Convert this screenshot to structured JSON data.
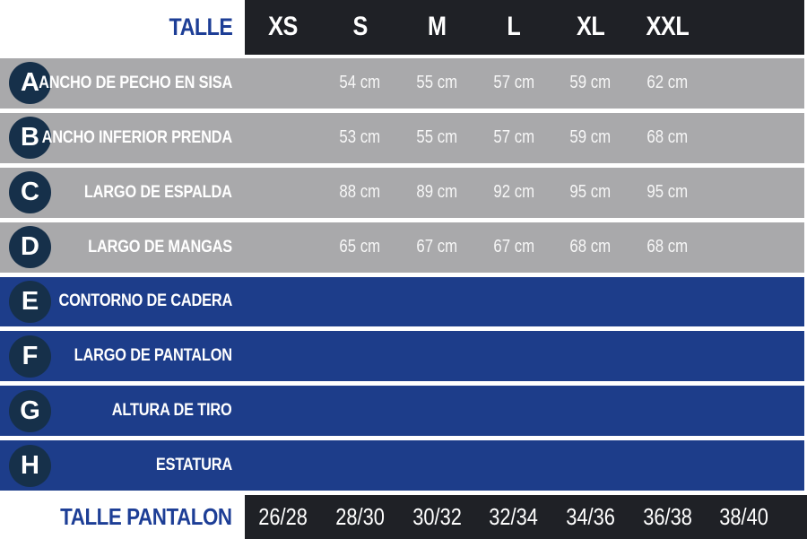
{
  "header": {
    "label": "TALLE",
    "sizes": [
      "XS",
      "S",
      "M",
      "L",
      "XL",
      "XXL"
    ]
  },
  "rows": [
    {
      "letter": "A",
      "label": "ANCHO DE PECHO EN SISA",
      "values": [
        "",
        "54 cm",
        "55 cm",
        "57 cm",
        "59 cm",
        "62 cm",
        ""
      ]
    },
    {
      "letter": "B",
      "label": "ANCHO INFERIOR PRENDA",
      "values": [
        "",
        "53 cm",
        "55 cm",
        "57 cm",
        "59 cm",
        "68 cm",
        ""
      ]
    },
    {
      "letter": "C",
      "label": "LARGO DE ESPALDA",
      "values": [
        "",
        "88 cm",
        "89 cm",
        "92 cm",
        "95 cm",
        "95 cm",
        ""
      ]
    },
    {
      "letter": "D",
      "label": "LARGO DE MANGAS",
      "values": [
        "",
        "65 cm",
        "67 cm",
        "67 cm",
        "68 cm",
        "68 cm",
        ""
      ]
    },
    {
      "letter": "E",
      "label": "CONTORNO DE CADERA",
      "values": [
        "",
        "",
        "",
        "",
        "",
        "",
        ""
      ]
    },
    {
      "letter": "F",
      "label": "LARGO DE PANTALON",
      "values": [
        "",
        "",
        "",
        "",
        "",
        "",
        ""
      ]
    },
    {
      "letter": "G",
      "label": "ALTURA DE TIRO",
      "values": [
        "",
        "",
        "",
        "",
        "",
        "",
        ""
      ]
    },
    {
      "letter": "H",
      "label": "ESTATURA",
      "values": [
        "",
        "",
        "",
        "",
        "",
        "",
        ""
      ]
    }
  ],
  "footer": {
    "label": "TALLE PANTALON",
    "values": [
      "26/28",
      "28/30",
      "30/32",
      "32/34",
      "34/36",
      "36/38",
      "38/40"
    ]
  },
  "colors": {
    "black": "#1f2126",
    "gray-row": "#a9a9ab",
    "blue-row": "#1d3d8a",
    "circle-navy": "#16304a",
    "blue-text": "#1d3e96"
  },
  "chart_data": {
    "type": "table",
    "title": "TALLE",
    "columns": [
      "TALLE",
      "XS",
      "S",
      "M",
      "L",
      "XL",
      "XXL"
    ],
    "rows": [
      {
        "id": "A",
        "measure": "ANCHO DE PECHO EN SISA",
        "values": {
          "XS": null,
          "S": "54 cm",
          "M": "55 cm",
          "L": "57 cm",
          "XL": "59 cm",
          "XXL": "62 cm"
        }
      },
      {
        "id": "B",
        "measure": "ANCHO INFERIOR PRENDA",
        "values": {
          "XS": null,
          "S": "53 cm",
          "M": "55 cm",
          "L": "57 cm",
          "XL": "59 cm",
          "XXL": "68 cm"
        }
      },
      {
        "id": "C",
        "measure": "LARGO DE ESPALDA",
        "values": {
          "XS": null,
          "S": "88 cm",
          "M": "89 cm",
          "L": "92 cm",
          "XL": "95 cm",
          "XXL": "95 cm"
        }
      },
      {
        "id": "D",
        "measure": "LARGO DE MANGAS",
        "values": {
          "XS": null,
          "S": "65 cm",
          "M": "67 cm",
          "L": "67 cm",
          "XL": "68 cm",
          "XXL": "68 cm"
        }
      },
      {
        "id": "E",
        "measure": "CONTORNO DE CADERA",
        "values": {}
      },
      {
        "id": "F",
        "measure": "LARGO DE PANTALON",
        "values": {}
      },
      {
        "id": "G",
        "measure": "ALTURA DE TIRO",
        "values": {}
      },
      {
        "id": "H",
        "measure": "ESTATURA",
        "values": {}
      }
    ],
    "footer_row": {
      "label": "TALLE PANTALON",
      "values": [
        "26/28",
        "28/30",
        "30/32",
        "32/34",
        "34/36",
        "36/38",
        "38/40"
      ]
    },
    "layout_hints": {
      "gray_rows": [
        "A",
        "B",
        "C",
        "D"
      ],
      "blue_rows": [
        "E",
        "F",
        "G",
        "H"
      ],
      "value_columns": 7,
      "xs_column_empty": true
    }
  }
}
